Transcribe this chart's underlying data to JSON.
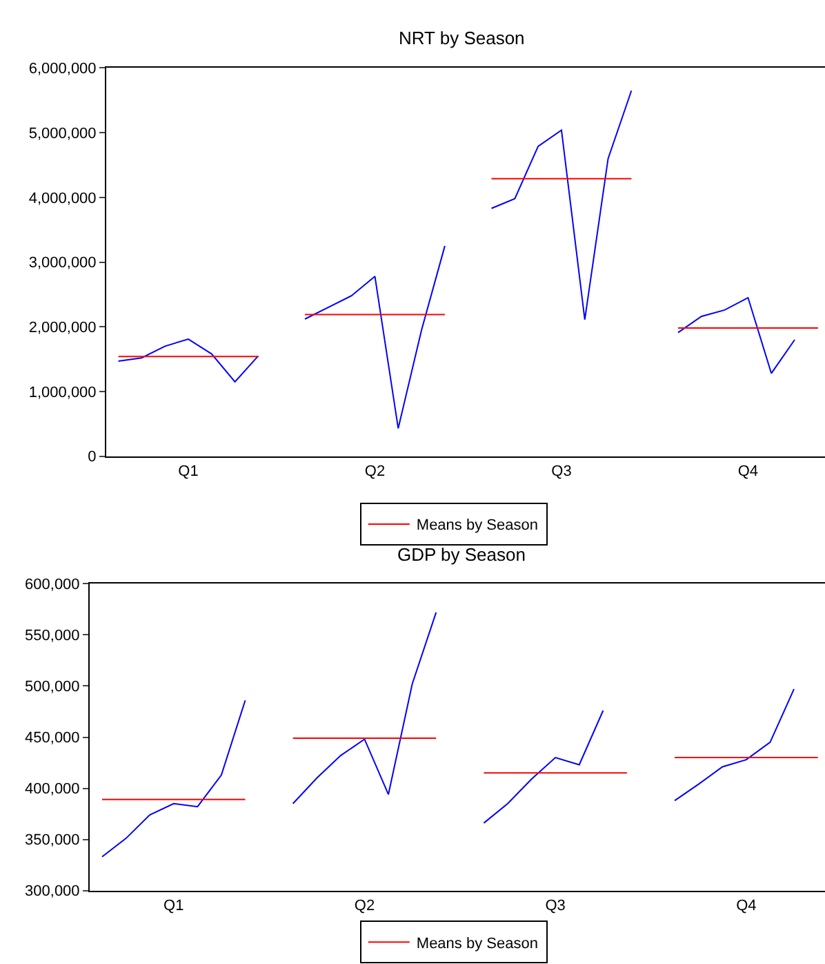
{
  "chart_data": [
    {
      "type": "line",
      "title": "NRT by Season",
      "ylim": [
        0,
        6000000
      ],
      "categories": [
        null,
        null,
        null,
        "Q1",
        null,
        null,
        null,
        null,
        null,
        null,
        null,
        "Q2",
        null,
        null,
        null,
        null,
        null,
        null,
        null,
        "Q3",
        null,
        null,
        null,
        null,
        null,
        null,
        null,
        "Q4",
        null,
        null,
        null
      ],
      "yticks": [
        {
          "value": 0,
          "label": "0"
        },
        {
          "value": 1000000,
          "label": "1,000,000"
        },
        {
          "value": 2000000,
          "label": "2,000,000"
        },
        {
          "value": 3000000,
          "label": "3,000,000"
        },
        {
          "value": 4000000,
          "label": "4,000,000"
        },
        {
          "value": 5000000,
          "label": "5,000,000"
        },
        {
          "value": 6000000,
          "label": "6,000,000"
        }
      ],
      "legend": "bottom",
      "line_style": "solid",
      "series": [
        {
          "color": "#0000ff",
          "values": [
            1470000,
            1520000,
            1700000,
            1810000,
            1580000,
            1150000,
            1550000,
            null,
            null,
            null,
            null,
            null,
            null,
            null,
            null,
            null,
            null,
            null,
            null,
            null,
            null,
            null,
            null,
            null,
            null,
            null,
            null,
            null,
            null,
            null,
            null
          ]
        },
        {
          "color": "#0000ff",
          "values": [
            null,
            null,
            null,
            null,
            null,
            null,
            null,
            null,
            2120000,
            2300000,
            2480000,
            2780000,
            430000,
            1950000,
            3250000,
            null,
            null,
            null,
            null,
            null,
            null,
            null,
            null,
            null,
            null,
            null,
            null,
            null,
            null,
            null,
            null
          ]
        },
        {
          "color": "#0000ff",
          "values": [
            null,
            null,
            null,
            null,
            null,
            null,
            null,
            null,
            null,
            null,
            null,
            null,
            null,
            null,
            null,
            null,
            3830000,
            3980000,
            4790000,
            5040000,
            2110000,
            4600000,
            5650000,
            null,
            null,
            null,
            null,
            null,
            null,
            null,
            null
          ]
        },
        {
          "color": "#0000ff",
          "values": [
            null,
            null,
            null,
            null,
            null,
            null,
            null,
            null,
            null,
            null,
            null,
            null,
            null,
            null,
            null,
            null,
            null,
            null,
            null,
            null,
            null,
            null,
            null,
            null,
            1910000,
            2160000,
            2260000,
            2450000,
            1280000,
            1800000,
            null
          ]
        },
        {
          "name": "Means by Season",
          "color": "#ff0000",
          "values": [
            1540000,
            1540000,
            1540000,
            1540000,
            1540000,
            1540000,
            1540000,
            null,
            2190000,
            2190000,
            2190000,
            2190000,
            2190000,
            2190000,
            2190000,
            null,
            4290000,
            4290000,
            4290000,
            4290000,
            4290000,
            4290000,
            4290000,
            null,
            1980000,
            1980000,
            1980000,
            1980000,
            1980000,
            1980000,
            1980000
          ]
        }
      ]
    },
    {
      "type": "line",
      "title": "GDP by Season",
      "ylim": [
        300000,
        600000
      ],
      "categories": [
        null,
        null,
        null,
        "Q1",
        null,
        null,
        null,
        null,
        null,
        null,
        null,
        "Q2",
        null,
        null,
        null,
        null,
        null,
        null,
        null,
        "Q3",
        null,
        null,
        null,
        null,
        null,
        null,
        null,
        "Q4",
        null,
        null,
        null
      ],
      "yticks": [
        {
          "value": 300000,
          "label": "300,000"
        },
        {
          "value": 350000,
          "label": "350,000"
        },
        {
          "value": 400000,
          "label": "400,000"
        },
        {
          "value": 450000,
          "label": "450,000"
        },
        {
          "value": 500000,
          "label": "500,000"
        },
        {
          "value": 550000,
          "label": "550,000"
        },
        {
          "value": 600000,
          "label": "600,000"
        }
      ],
      "legend": "bottom",
      "line_style": "solid",
      "series": [
        {
          "color": "#0000ff",
          "values": [
            333000,
            351000,
            374000,
            385000,
            382000,
            413000,
            486000,
            null,
            null,
            null,
            null,
            null,
            null,
            null,
            null,
            null,
            null,
            null,
            null,
            null,
            null,
            null,
            null,
            null,
            null,
            null,
            null,
            null,
            null,
            null,
            null
          ]
        },
        {
          "color": "#0000ff",
          "values": [
            null,
            null,
            null,
            null,
            null,
            null,
            null,
            null,
            385000,
            410000,
            432000,
            448000,
            394000,
            502000,
            572000,
            null,
            null,
            null,
            null,
            null,
            null,
            null,
            null,
            null,
            null,
            null,
            null,
            null,
            null,
            null,
            null
          ]
        },
        {
          "color": "#0000ff",
          "values": [
            null,
            null,
            null,
            null,
            null,
            null,
            null,
            null,
            null,
            null,
            null,
            null,
            null,
            null,
            null,
            null,
            366000,
            385000,
            409000,
            430000,
            423000,
            476000,
            null,
            null,
            null,
            null,
            null,
            null,
            null,
            null,
            null
          ]
        },
        {
          "color": "#0000ff",
          "values": [
            null,
            null,
            null,
            null,
            null,
            null,
            null,
            null,
            null,
            null,
            null,
            null,
            null,
            null,
            null,
            null,
            null,
            null,
            null,
            null,
            null,
            null,
            null,
            null,
            388000,
            404000,
            421000,
            428000,
            445000,
            497000,
            null
          ]
        },
        {
          "name": "Means by Season",
          "color": "#ff0000",
          "values": [
            389000,
            389000,
            389000,
            389000,
            389000,
            389000,
            389000,
            null,
            449000,
            449000,
            449000,
            449000,
            449000,
            449000,
            449000,
            null,
            415000,
            415000,
            415000,
            415000,
            415000,
            415000,
            415000,
            null,
            430000,
            430000,
            430000,
            430000,
            430000,
            430000,
            430000
          ]
        }
      ]
    }
  ]
}
